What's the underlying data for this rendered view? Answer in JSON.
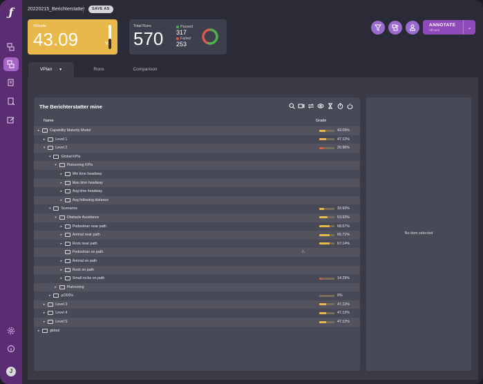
{
  "app": {
    "logo_glyph": "ƒ",
    "avatar_initial": "J"
  },
  "header": {
    "title": "20220215_Berichterstatter",
    "save_label": "SAVE AS"
  },
  "vgrade": {
    "label": "VGrade",
    "value": "43.09",
    "unit": "%",
    "level": 0.43
  },
  "runs": {
    "label": "Total Runs",
    "total": "570",
    "passed_label": "Passed",
    "passed": "317",
    "failed_label": "Failed",
    "failed": "253",
    "passed_color": "#4caf50",
    "failed_color": "#e05a4a"
  },
  "annotate": {
    "label": "ANNOTATE",
    "sub": "All runs"
  },
  "tabs": [
    "VPlan",
    "Runs",
    "Comparison"
  ],
  "panel": {
    "title": "The Berichterstatter mine",
    "col_name": "Name",
    "col_grade": "Grade"
  },
  "side": {
    "empty": "No item selected"
  },
  "rows": [
    {
      "name": "Capability Maturity Model",
      "grade": "43.09%",
      "level": 0.43,
      "color": "#e9b84a",
      "depth": 0,
      "chev": "▸"
    },
    {
      "name": "Level 1",
      "grade": "47.12%",
      "level": 0.47,
      "color": "#e9b84a",
      "depth": 1,
      "chev": "▸"
    },
    {
      "name": "Level 2",
      "grade": "26.96%",
      "level": 0.27,
      "color": "#e05a4a",
      "depth": 1,
      "chev": "▾"
    },
    {
      "name": "Global KPIs",
      "grade": "",
      "level": null,
      "depth": 2,
      "chev": "▾"
    },
    {
      "name": "Platooning KPIs",
      "grade": "",
      "level": null,
      "depth": 3,
      "chev": "▾"
    },
    {
      "name": "Min time headway",
      "grade": "",
      "level": null,
      "depth": 4,
      "chev": "▸"
    },
    {
      "name": "Max time headway",
      "grade": "",
      "level": null,
      "depth": 4,
      "chev": "▸"
    },
    {
      "name": "Avg time headway",
      "grade": "",
      "level": null,
      "depth": 4,
      "chev": "▸"
    },
    {
      "name": "Avg following distance",
      "grade": "",
      "level": null,
      "depth": 4,
      "chev": "▸"
    },
    {
      "name": "Scenarios",
      "grade": "33.93%",
      "level": 0.34,
      "color": "#e9b84a",
      "depth": 2,
      "chev": "▾"
    },
    {
      "name": "Obstacle Avoidance",
      "grade": "53.93%",
      "level": 0.54,
      "color": "#e9b84a",
      "depth": 3,
      "chev": "▾"
    },
    {
      "name": "Pedestrian near path",
      "grade": "68.57%",
      "level": 0.69,
      "color": "#e9b84a",
      "depth": 4,
      "chev": "▸"
    },
    {
      "name": "Animal near path",
      "grade": "65.71%",
      "level": 0.66,
      "color": "#e9b84a",
      "depth": 4,
      "chev": "▸"
    },
    {
      "name": "Rock near path",
      "grade": "67.14%",
      "level": 0.67,
      "color": "#e9b84a",
      "depth": 4,
      "chev": "▸"
    },
    {
      "name": "Pedestrian on path",
      "grade": "",
      "level": null,
      "depth": 4,
      "chev": "",
      "warn": "⚠"
    },
    {
      "name": "Animal on path",
      "grade": "",
      "level": null,
      "depth": 4,
      "chev": "▸"
    },
    {
      "name": "Rock on path",
      "grade": "",
      "level": null,
      "depth": 4,
      "chev": "▸"
    },
    {
      "name": "Small rocks on path",
      "grade": "14.29%",
      "level": 0.14,
      "color": "#e05a4a",
      "depth": 4,
      "chev": "▸"
    },
    {
      "name": "Platooning",
      "grade": "",
      "level": null,
      "depth": 3,
      "chev": "▸"
    },
    {
      "name": "µODDs",
      "grade": "0%",
      "level": 0,
      "color": "#e05a4a",
      "depth": 2,
      "chev": "▸"
    },
    {
      "name": "Level 3",
      "grade": "47.12%",
      "level": 0.47,
      "color": "#e9b84a",
      "depth": 1,
      "chev": "▸"
    },
    {
      "name": "Level 4",
      "grade": "47.12%",
      "level": 0.47,
      "color": "#e9b84a",
      "depth": 1,
      "chev": "▸"
    },
    {
      "name": "Level 5",
      "grade": "47.12%",
      "level": 0.47,
      "color": "#e9b84a",
      "depth": 1,
      "chev": "▸"
    },
    {
      "name": "global",
      "grade": "",
      "level": null,
      "depth": 0,
      "chev": "▸"
    }
  ]
}
